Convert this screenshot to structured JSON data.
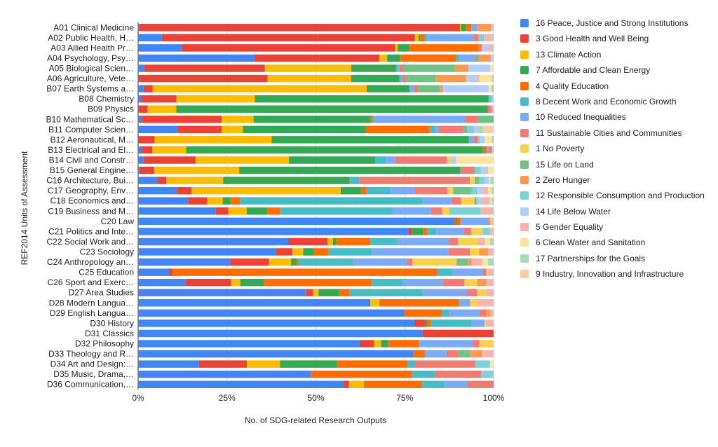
{
  "chart_data": {
    "type": "bar",
    "orientation": "horizontal",
    "stacked": "percent",
    "xlabel": "No. of SDG-related Research Outputs",
    "ylabel": "REF2014 Units of Assessment",
    "xlim": [
      0,
      100
    ],
    "x_ticks": [
      "0%",
      "25%",
      "50%",
      "75%",
      "100%"
    ],
    "grid": true,
    "legend_position": "right",
    "categories": [
      "A01 Clinical Medicine",
      "A02 Public Health, H…",
      "A03 Allied Health Pr…",
      "A04 Psychology, Psy…",
      "A05 Biological Scien…",
      "A06 Agriculture, Vete…",
      "B07 Earth Systems a…",
      "B08 Chemistry",
      "B09 Physics",
      "B10 Mathematical Sc…",
      "B11 Computer Scien…",
      "B12 Aeronautical, M…",
      "B13 Electrical and El…",
      "B14 Civil and Constr…",
      "B15 General Engine…",
      "C16 Architecture, Bui…",
      "C17 Geography, Env…",
      "C18 Economics and…",
      "C19 Business and M…",
      "C20 Law",
      "C21 Politics and Inte…",
      "C22 Social Work and…",
      "C23 Sociology",
      "C24 Anthropology an…",
      "C25 Education",
      "C26 Sport and Exerc…",
      "D27 Area Studies",
      "D28 Modern Langua…",
      "D29 English Langua…",
      "D30 History",
      "D31 Classics",
      "D32 Philosophy",
      "D33 Theology and R…",
      "D34 Art and Design:…",
      "D35 Music, Drama,…",
      "D36 Communication,…"
    ],
    "series": [
      {
        "name": "16 Peace, Justice and Strong Institutions",
        "color": "#4285F4",
        "values": [
          0.3,
          6.4,
          10.7,
          32.2,
          1.6,
          0.3,
          1.5,
          0.8,
          0,
          1,
          11,
          0,
          1,
          1.5,
          0.4,
          6.1,
          10.5,
          13,
          21,
          85,
          73,
          42,
          38,
          25,
          8.5,
          13,
          46,
          64,
          74.5,
          75,
          80,
          62,
          70,
          16.5,
          48.5,
          54.5
        ]
      },
      {
        "name": "3 Good Health and Well Being",
        "color": "#EA4335",
        "values": [
          86.6,
          68.5,
          52.8,
          34.6,
          33.8,
          36,
          2.5,
          9.8,
          2.7,
          22.5,
          12.5,
          4.5,
          3,
          14.5,
          4,
          2.8,
          4,
          5,
          3.5,
          0.3,
          1,
          11,
          4.5,
          10.5,
          1,
          12.5,
          2,
          0,
          0,
          3,
          20,
          4,
          0,
          13,
          0,
          1.5
        ]
      },
      {
        "name": "13 Climate Action",
        "color": "#FBBC04",
        "values": [
          0.3,
          1,
          0.6,
          2.2,
          24.2,
          23.5,
          58.5,
          21.7,
          8,
          9,
          6,
          32,
          9.5,
          26,
          23,
          18,
          40.5,
          4,
          5,
          0,
          0,
          1.5,
          3,
          6,
          0,
          2.5,
          1.5,
          2.5,
          0,
          0,
          0,
          2,
          0,
          9,
          0,
          4
        ]
      },
      {
        "name": "7 Affordable and Clean Energy",
        "color": "#34A853",
        "values": [
          1.3,
          0.5,
          2.8,
          3.6,
          12.5,
          13.5,
          11.5,
          64.7,
          87.7,
          33,
          34.5,
          54,
          83.5,
          24,
          60,
          40,
          5.5,
          2,
          5.5,
          0.4,
          3,
          1,
          3,
          1.5,
          0,
          6.5,
          5.5,
          0,
          0,
          0.5,
          0,
          2,
          0,
          15.5,
          0,
          0
        ]
      },
      {
        "name": "4 Quality Education",
        "color": "#FF6D01",
        "values": [
          1.5,
          1.2,
          17.2,
          15.5,
          0,
          0,
          0,
          0,
          0,
          0.6,
          18,
          0,
          1,
          0,
          0,
          0,
          1.5,
          2.5,
          3.5,
          1,
          1,
          9.5,
          4,
          0.5,
          73,
          29.5,
          3,
          22,
          10.5,
          1,
          0,
          8.5,
          3,
          19,
          28.5,
          15.5
        ]
      },
      {
        "name": "8 Decent Work and Economic Growth",
        "color": "#46BDC6",
        "values": [
          0,
          0.6,
          0,
          1,
          0.5,
          0.5,
          0.6,
          0.3,
          0,
          0.5,
          1.5,
          0,
          0,
          3,
          0,
          3,
          6.5,
          47.5,
          30.5,
          0,
          2.5,
          7.5,
          12,
          15,
          4,
          8.5,
          20,
          0,
          2,
          11,
          0,
          0,
          0,
          2,
          6.5,
          6
        ]
      },
      {
        "name": "10 Reduced Inequalities",
        "color": "#7BAAF7",
        "values": [
          1.6,
          12.7,
          0,
          4.2,
          0.5,
          0.3,
          0.8,
          0.3,
          0,
          25.5,
          1,
          1.5,
          0.5,
          2.5,
          0,
          0,
          6.5,
          7.5,
          10.5,
          7.5,
          7.5,
          14.5,
          21,
          14.5,
          8.5,
          11,
          12,
          3,
          8.5,
          3.5,
          0,
          15,
          5.5,
          0,
          0,
          6
        ]
      },
      {
        "name": "11 Sustainable Cities and Communities",
        "color": "#F07B72",
        "values": [
          0,
          1.2,
          0.8,
          0.6,
          1,
          1,
          1.1,
          0,
          1,
          3.5,
          7,
          1,
          1,
          14.5,
          3.5,
          35,
          9,
          2.5,
          3,
          0.4,
          2,
          2.5,
          6,
          1.5,
          1,
          6,
          3,
          0,
          2,
          0,
          0,
          2,
          3,
          16.5,
          13,
          7
        ]
      },
      {
        "name": "1 No Poverty",
        "color": "#FCD04F",
        "values": [
          0,
          0,
          0,
          0,
          0,
          0,
          0,
          0,
          0,
          0,
          0,
          0,
          0,
          1,
          0,
          1.5,
          1.5,
          3.5,
          2,
          0.5,
          3,
          5.5,
          2.5,
          12,
          0.5,
          3.5,
          2.5,
          2,
          0,
          0.5,
          0,
          4,
          0,
          0,
          0,
          0
        ]
      },
      {
        "name": "15 Life on Land",
        "color": "#71C287",
        "values": [
          0,
          0,
          0,
          0.6,
          14.5,
          8.5,
          6,
          0,
          0,
          4.5,
          1,
          0,
          0,
          0,
          0.5,
          1.5,
          5,
          0.5,
          0,
          0,
          0,
          0,
          0,
          3,
          0,
          0,
          0,
          0,
          0,
          0,
          0,
          0,
          3,
          0,
          0,
          0
        ]
      },
      {
        "name": "2 Zero Hunger",
        "color": "#FF994D",
        "values": [
          3.8,
          0,
          0,
          3.2,
          3.8,
          8.5,
          0.8,
          0,
          0,
          0,
          0,
          0,
          0,
          0,
          0,
          0,
          0,
          0,
          0,
          0,
          0,
          0,
          2.5,
          1,
          0,
          2.5,
          0,
          0,
          1,
          0,
          0,
          0,
          3,
          0,
          0,
          0
        ]
      },
      {
        "name": "12 Responsible Consumption and Production",
        "color": "#7ED1D7",
        "values": [
          0,
          1.5,
          0,
          0,
          0,
          0,
          0,
          0.5,
          0,
          0,
          2,
          0.6,
          0,
          0,
          1.5,
          1.5,
          1.5,
          0.5,
          8.5,
          0,
          2,
          0,
          0,
          0,
          0,
          0,
          0,
          0,
          0,
          0,
          0,
          0,
          0,
          4,
          3.5,
          0
        ]
      },
      {
        "name": "14 Life Below Water",
        "color": "#B3CEFB",
        "values": [
          0.6,
          0,
          1.5,
          0.8,
          6,
          3,
          12.5,
          0,
          0,
          0,
          1,
          1.2,
          0,
          1.5,
          1.5,
          1.5,
          1.5,
          1,
          0,
          0,
          0,
          0,
          0,
          0,
          0,
          0,
          0,
          0,
          0,
          0,
          0,
          0,
          0,
          0,
          0,
          0
        ]
      },
      {
        "name": "5 Gender Equality",
        "color": "#F7B4AE",
        "values": [
          0,
          2,
          0.8,
          0,
          0,
          0.7,
          0,
          0,
          0.6,
          0,
          0,
          0,
          0,
          0,
          0.5,
          0,
          1.5,
          2,
          3.5,
          0.5,
          1,
          2,
          1.5,
          3,
          1.5,
          2,
          2,
          4.5,
          1,
          2,
          0,
          0,
          3,
          0,
          0,
          0
        ]
      },
      {
        "name": "6 Clean Water and Sanitation",
        "color": "#FDE49B",
        "values": [
          0,
          0,
          0,
          0,
          1,
          3.5,
          0.8,
          0,
          0,
          0,
          0,
          2,
          0,
          10.5,
          1.5,
          0.5,
          1,
          0.5,
          0,
          0,
          0,
          1.5,
          0,
          1.5,
          0,
          0,
          0,
          0,
          0,
          0,
          0,
          0,
          0,
          1,
          0,
          0
        ]
      },
      {
        "name": "17 Partnerships for the Goals",
        "color": "#A8DAB5",
        "values": [
          0,
          0.6,
          0.6,
          0,
          0,
          0.5,
          0.6,
          0.3,
          0,
          0,
          1.5,
          0.5,
          0.5,
          0,
          0,
          1,
          0.5,
          0.5,
          0,
          0,
          0,
          1,
          0,
          1.5,
          0,
          0,
          0,
          0,
          0,
          0,
          0,
          0,
          0,
          0,
          0,
          0
        ]
      },
      {
        "name": "9 Industry, Innovation and Infrastructure",
        "color": "#FFCBA4",
        "values": [
          0,
          0,
          0,
          0,
          0,
          0,
          0,
          0,
          0,
          0,
          3,
          0,
          0,
          0,
          0,
          0,
          0,
          0,
          0,
          0,
          0,
          0,
          0,
          0,
          0,
          0,
          0,
          0,
          0,
          0,
          0,
          0,
          0,
          0,
          0,
          0
        ]
      }
    ]
  }
}
